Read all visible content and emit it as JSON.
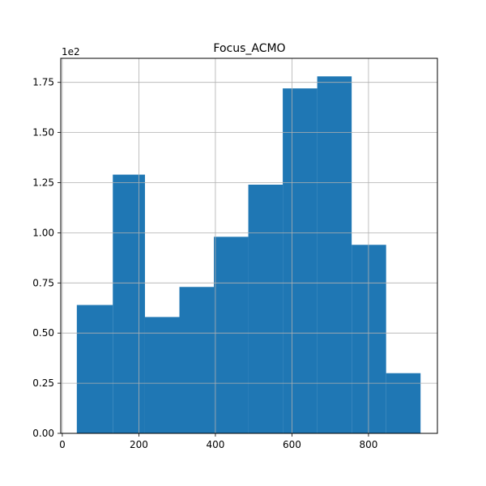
{
  "chart_data": {
    "type": "bar",
    "title": "Focus_ACMO",
    "xlabel": "",
    "ylabel": "",
    "y_offset_text": "1e2",
    "bins": [
      {
        "left": 38,
        "right": 132,
        "value": 64
      },
      {
        "left": 132,
        "right": 216,
        "value": 129
      },
      {
        "left": 216,
        "right": 306,
        "value": 58
      },
      {
        "left": 306,
        "right": 396,
        "value": 73
      },
      {
        "left": 396,
        "right": 486,
        "value": 98
      },
      {
        "left": 486,
        "right": 576,
        "value": 124
      },
      {
        "left": 576,
        "right": 666,
        "value": 172
      },
      {
        "left": 666,
        "right": 756,
        "value": 178
      },
      {
        "left": 756,
        "right": 846,
        "value": 94
      },
      {
        "left": 846,
        "right": 936,
        "value": 30
      }
    ],
    "xlim": [
      -4,
      980
    ],
    "ylim": [
      0,
      187
    ],
    "x_ticks": [
      {
        "value": 0,
        "label": "0"
      },
      {
        "value": 200,
        "label": "200"
      },
      {
        "value": 400,
        "label": "400"
      },
      {
        "value": 600,
        "label": "600"
      },
      {
        "value": 800,
        "label": "800"
      }
    ],
    "y_ticks": [
      {
        "value": 0,
        "label": "0.00"
      },
      {
        "value": 25,
        "label": "0.25"
      },
      {
        "value": 50,
        "label": "0.50"
      },
      {
        "value": 75,
        "label": "0.75"
      },
      {
        "value": 100,
        "label": "1.00"
      },
      {
        "value": 125,
        "label": "1.25"
      },
      {
        "value": 150,
        "label": "1.50"
      },
      {
        "value": 175,
        "label": "1.75"
      }
    ],
    "grid": true,
    "bar_color": "#1f77b4",
    "grid_color": "#b0b0b0"
  }
}
